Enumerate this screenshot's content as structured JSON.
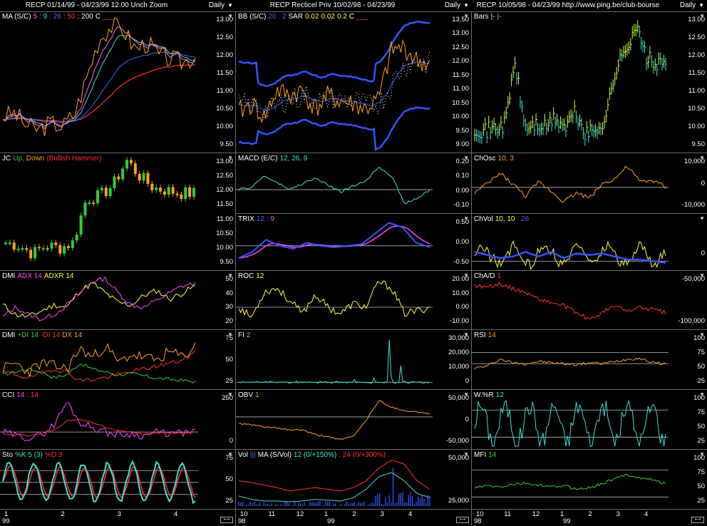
{
  "windows": [
    {
      "title": "RECP  01/14/99 - 04/23/99   12.00  Unch   Zoom",
      "period": "Daily",
      "x_ticks": [
        "1",
        "2",
        "3",
        "4"
      ],
      "x_year": "99",
      "panels": [
        {
          "label": [
            {
              "text": "MA (S/C)",
              "color": "#ffffff"
            },
            {
              "text": "5",
              "color": "#ff66ff"
            },
            {
              "text": ": 9",
              "color": "#40e0d0"
            },
            {
              "text": ": 26",
              "color": "#4466ff"
            },
            {
              "text": ": 50",
              "color": "#ff3030"
            },
            {
              "text": ": 200",
              "color": "#ffffff"
            },
            {
              "text": "C",
              "color": "#ffffff"
            },
            {
              "text": "___",
              "color": "#ff3030"
            }
          ],
          "ticks": [
            "13.00",
            "12.50",
            "12.00",
            "11.50",
            "11.00",
            "10.50",
            "10.00",
            "9.50"
          ],
          "kind": "price_ma"
        },
        {
          "label": [
            {
              "text": "JC",
              "color": "#ffffff"
            },
            {
              "text": "Up,",
              "color": "#33cc33"
            },
            {
              "text": "Down",
              "color": "#ffa020"
            },
            {
              "text": "(Bullish Hammer)",
              "color": "#ff3030"
            }
          ],
          "ticks": [
            "13.00",
            "12.50",
            "12.00",
            "11.50",
            "11.00",
            "10.50",
            "10.00",
            "9.50"
          ],
          "kind": "candles"
        },
        {
          "label": [
            {
              "text": "DMI",
              "color": "#ffffff"
            },
            {
              "text": "ADX 14",
              "color": "#ff44ff"
            },
            {
              "text": "ADXR 14",
              "color": "#ffff44"
            }
          ],
          "ticks": [
            "50",
            "40",
            "30",
            "20"
          ],
          "kind": "dmi"
        },
        {
          "label": [
            {
              "text": "DMI",
              "color": "#ffffff"
            },
            {
              "text": "+DI 14",
              "color": "#33cc33"
            },
            {
              "text": "-DI 14",
              "color": "#ff3030"
            },
            {
              "text": "DX 14",
              "color": "#ffa020"
            }
          ],
          "ticks": [
            "75",
            "50",
            "25"
          ],
          "kind": "di"
        },
        {
          "label": [
            {
              "text": "CCI",
              "color": "#ffffff"
            },
            {
              "text": "14",
              "color": "#ff44ff"
            },
            {
              "text": ": 14",
              "color": "#ff3030"
            }
          ],
          "ticks": [
            "250",
            "0"
          ],
          "kind": "cci"
        },
        {
          "label": [
            {
              "text": "Sto",
              "color": "#ffffff"
            },
            {
              "text": "%K 5 (3)",
              "color": "#40e0d0"
            },
            {
              "text": "%D 3",
              "color": "#ff3030"
            }
          ],
          "ticks": [
            "75",
            "50",
            "25"
          ],
          "kind": "sto"
        }
      ]
    },
    {
      "title": "RECP  Recticel Priv  10/02/98 - 04/23/99",
      "period": "Daily",
      "x_ticks": [
        "10",
        "11",
        "12",
        "1",
        "2",
        "3",
        "4"
      ],
      "x_year": "98",
      "x_year2": "99",
      "panels": [
        {
          "label": [
            {
              "text": "BB (S/C)",
              "color": "#ffffff"
            },
            {
              "text": "20 : 2",
              "color": "#4466ff"
            },
            {
              "text": "SAR",
              "color": "#ffffff"
            },
            {
              "text": "0.02",
              "color": "#ffff44"
            },
            {
              "text": "0.02",
              "color": "#ffff44"
            },
            {
              "text": "0.2",
              "color": "#ffff44"
            },
            {
              "text": "C",
              "color": "#ffffff"
            },
            {
              "text": "___",
              "color": "#ff3030"
            }
          ],
          "ticks": [
            "13.50",
            "13.00",
            "12.50",
            "12.00",
            "11.50",
            "11.00",
            "10.50",
            "10.00",
            "9.50",
            "9.00"
          ],
          "kind": "bb"
        },
        {
          "label": [
            {
              "text": "MACD (E/C)",
              "color": "#ffffff"
            },
            {
              "text": "12, 26, 9",
              "color": "#40e0d0"
            }
          ],
          "ticks": [
            "0.20",
            "0.10",
            "0.00",
            "-0.10"
          ],
          "kind": "macd"
        },
        {
          "label": [
            {
              "text": "TRIX",
              "color": "#ffffff"
            },
            {
              "text": "12",
              "color": "#4466ff"
            },
            {
              "text": ": 9",
              "color": "#ff44ff"
            }
          ],
          "ticks": [
            "0.50",
            "0.00",
            "-0.50"
          ],
          "kind": "trix"
        },
        {
          "label": [
            {
              "text": "ROC",
              "color": "#ffffff"
            },
            {
              "text": "12",
              "color": "#ffff44"
            }
          ],
          "ticks": [
            "20.00",
            "10.00",
            "0.00",
            "-10.00"
          ],
          "kind": "roc"
        },
        {
          "label": [
            {
              "text": "FI",
              "color": "#ffffff"
            },
            {
              "text": "2",
              "color": "#40e0d0"
            }
          ],
          "ticks": [
            "30,000",
            "20,000",
            "10,000",
            "0"
          ],
          "kind": "fi"
        },
        {
          "label": [
            {
              "text": "OBV",
              "color": "#ffffff"
            },
            {
              "text": "1",
              "color": "#ffa020"
            }
          ],
          "ticks": [
            "50,000",
            "0",
            "-50,000"
          ],
          "kind": "obv"
        },
        {
          "label": [
            {
              "text": "Vol",
              "color": "#ffffff"
            },
            {
              "text": "|||",
              "color": "#4466ff"
            },
            {
              "text": "MA (S/Vol)",
              "color": "#ffffff"
            },
            {
              "text": "12 (0/+150%)",
              "color": "#40e0d0"
            },
            {
              "text": ": 24 (0/+300%)",
              "color": "#ff3030"
            }
          ],
          "ticks": [
            "50,000",
            "25,000"
          ],
          "kind": "vol"
        }
      ]
    },
    {
      "title": "RECP  10/05/98 - 04/23/99   http://www.ping.be/club-bourse",
      "period": "Daily",
      "x_ticks": [
        "10",
        "11",
        "12",
        "1",
        "2",
        "3",
        "4"
      ],
      "x_year": "98",
      "x_year2": "99",
      "panels": [
        {
          "label": [
            {
              "text": "Bars",
              "color": "#ffffff"
            },
            {
              "text": "|-",
              "color": "#ffff44"
            },
            {
              "text": "|-",
              "color": "#40e0d0"
            }
          ],
          "ticks": [
            "13.00",
            "12.50",
            "12.00",
            "11.50",
            "11.00",
            "10.50",
            "10.00",
            "9.50"
          ],
          "kind": "bars"
        },
        {
          "label": [
            {
              "text": "ChOsc",
              "color": "#ffffff"
            },
            {
              "text": "10, 3",
              "color": "#ffa020"
            }
          ],
          "ticks": [
            "10,000",
            "0",
            "-10,000"
          ],
          "kind": "chosc"
        },
        {
          "label": [
            {
              "text": "ChVol",
              "color": "#ffffff"
            },
            {
              "text": "10, 10",
              "color": "#ffff44"
            },
            {
              "text": ": 26",
              "color": "#4466ff"
            }
          ],
          "ticks": [
            "0"
          ],
          "kind": "chvol"
        },
        {
          "label": [
            {
              "text": "ChA/D",
              "color": "#ffffff"
            },
            {
              "text": "1",
              "color": "#ff3030"
            }
          ],
          "ticks": [
            "-50,000",
            "-100,000"
          ],
          "kind": "chad"
        },
        {
          "label": [
            {
              "text": "RSI",
              "color": "#ffffff"
            },
            {
              "text": "14",
              "color": "#ffa020"
            }
          ],
          "ticks": [
            "100",
            "75",
            "50",
            "25"
          ],
          "kind": "rsi"
        },
        {
          "label": [
            {
              "text": "W.%R",
              "color": "#ffffff"
            },
            {
              "text": "12",
              "color": "#40e0d0"
            }
          ],
          "ticks": [
            "100",
            "75",
            "50",
            "25"
          ],
          "kind": "wr"
        },
        {
          "label": [
            {
              "text": "MFI",
              "color": "#ffffff"
            },
            {
              "text": "14",
              "color": "#33cc33"
            }
          ],
          "ticks": [
            "100",
            "75",
            "50",
            "25"
          ],
          "kind": "mfi"
        }
      ]
    }
  ],
  "chart_data": [
    {
      "type": "line",
      "title": "RECP 01/14/99 - 04/23/99",
      "series": [
        {
          "name": "5",
          "values": [
            10.1,
            9.8,
            10.0,
            9.9,
            10.2,
            10.8,
            11.6,
            12.3,
            12.9,
            13.1,
            12.8,
            12.4,
            12.1,
            12.0,
            12.0
          ]
        },
        {
          "name": "26",
          "values": [
            10.2,
            10.1,
            10.0,
            10.0,
            10.1,
            10.4,
            10.9,
            11.5,
            11.9,
            12.2,
            12.4,
            12.4,
            12.3,
            12.2,
            12.1
          ]
        },
        {
          "name": "50",
          "values": [
            9.9,
            9.9,
            9.9,
            9.9,
            10.0,
            10.1,
            10.3,
            10.6,
            10.9,
            11.2,
            11.4,
            11.6,
            11.8,
            11.9,
            12.0
          ]
        }
      ]
    },
    {
      "type": "line",
      "title": "RECP 10/02/98 - 04/23/99",
      "series": [
        {
          "name": "Close",
          "values": [
            10.2,
            10.5,
            10.0,
            11.0,
            10.8,
            11.0,
            10.3,
            10.8,
            10.5,
            10.3,
            10.7,
            12.3,
            12.6,
            12.4,
            12.0
          ]
        }
      ]
    },
    {
      "type": "bar",
      "title": "RECP 10/05/98 - 04/23/99",
      "series": [
        {
          "name": "Bars",
          "values": [
            10.0,
            10.0,
            10.1,
            12.1,
            10.0,
            10.1,
            10.3,
            10.0,
            10.5,
            9.9,
            10.3,
            11.8,
            13.3,
            12.3,
            12.0
          ]
        }
      ]
    }
  ]
}
